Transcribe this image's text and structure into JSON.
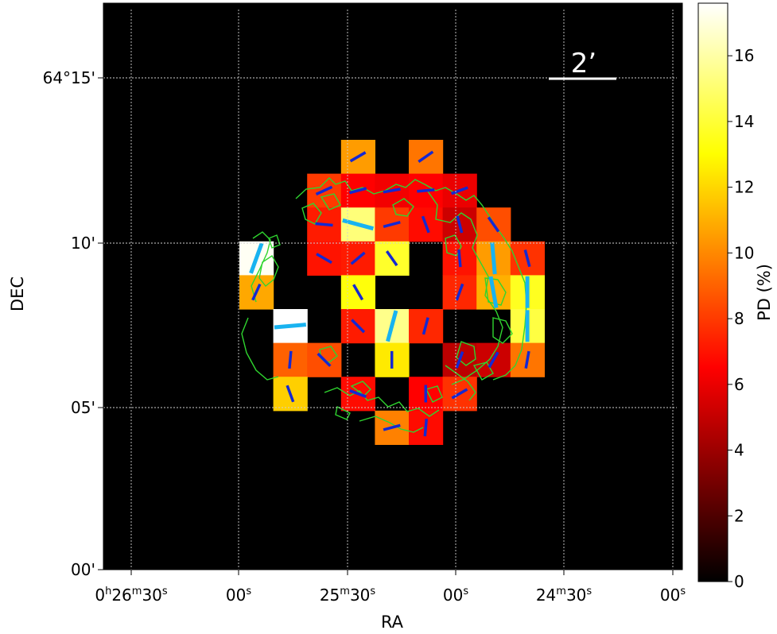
{
  "chart_data": {
    "type": "heatmap",
    "xlabel": "RA",
    "ylabel": "DEC",
    "colorbar_label": "PD (%)",
    "colorbar_range": [
      0,
      17.6
    ],
    "colorbar_ticks": [
      0,
      2,
      4,
      6,
      8,
      10,
      12,
      14,
      16
    ],
    "colormap": "hot",
    "colormap_stops": [
      {
        "v": 0.0,
        "color": "#000000"
      },
      {
        "v": 0.37,
        "color": "#ff0000"
      },
      {
        "v": 0.74,
        "color": "#ffff00"
      },
      {
        "v": 1.0,
        "color": "#ffffff"
      }
    ],
    "background_color": "#000000",
    "grid": true,
    "grid_color": "#cfcfcf",
    "x_ticks": [
      {
        "h": "0",
        "m": "26",
        "s": "30"
      },
      {
        "h": "",
        "m": "",
        "s": "00"
      },
      {
        "h": "",
        "m": "25",
        "s": "30"
      },
      {
        "h": "",
        "m": "",
        "s": "00"
      },
      {
        "h": "",
        "m": "24",
        "s": "30"
      },
      {
        "h": "",
        "m": "",
        "s": "00"
      }
    ],
    "y_ticks": [
      "00'",
      "05'",
      "10'",
      "64°15'"
    ],
    "scale_bar_label": "2’",
    "scale_bar_arcmin": 2,
    "pixel_size_arcmin": 1.05,
    "grid_cols": 9,
    "grid_rows": 9,
    "vector_colors": {
      "significant": "#19b3f0",
      "other": "#1428d2"
    },
    "contour_color": "#2fd52f",
    "pixels": [
      {
        "col": 3,
        "row": 0,
        "pd": 10.5,
        "pa": 60,
        "sig": false
      },
      {
        "col": 5,
        "row": 0,
        "pd": 9.5,
        "pa": 55,
        "sig": false
      },
      {
        "col": 2,
        "row": 1,
        "pd": 8.0,
        "pa": 65,
        "sig": false
      },
      {
        "col": 3,
        "row": 1,
        "pd": 6.5,
        "pa": 75,
        "sig": false
      },
      {
        "col": 4,
        "row": 1,
        "pd": 6.2,
        "pa": 80,
        "sig": false
      },
      {
        "col": 5,
        "row": 1,
        "pd": 6.5,
        "pa": 85,
        "sig": false
      },
      {
        "col": 6,
        "row": 1,
        "pd": 6.0,
        "pa": 70,
        "sig": false
      },
      {
        "col": 2,
        "row": 2,
        "pd": 7.2,
        "pa": 95,
        "sig": false
      },
      {
        "col": 3,
        "row": 2,
        "pd": 15.2,
        "pa": 105,
        "sig": true
      },
      {
        "col": 4,
        "row": 2,
        "pd": 8.0,
        "pa": 75,
        "sig": false
      },
      {
        "col": 5,
        "row": 2,
        "pd": 6.8,
        "pa": 160,
        "sig": false
      },
      {
        "col": 6,
        "row": 2,
        "pd": 5.2,
        "pa": 165,
        "sig": false
      },
      {
        "col": 7,
        "row": 2,
        "pd": 8.5,
        "pa": 145,
        "sig": false
      },
      {
        "col": 0,
        "row": 3,
        "pd": 17.4,
        "pa": 20,
        "sig": true
      },
      {
        "col": 2,
        "row": 3,
        "pd": 7.0,
        "pa": 120,
        "sig": false
      },
      {
        "col": 3,
        "row": 3,
        "pd": 7.2,
        "pa": 50,
        "sig": false
      },
      {
        "col": 4,
        "row": 3,
        "pd": 13.8,
        "pa": 145,
        "sig": false
      },
      {
        "col": 6,
        "row": 3,
        "pd": 7.0,
        "pa": 175,
        "sig": false
      },
      {
        "col": 7,
        "row": 3,
        "pd": 10.5,
        "pa": 175,
        "sig": true
      },
      {
        "col": 8,
        "row": 3,
        "pd": 7.8,
        "pa": 165,
        "sig": false
      },
      {
        "col": 0,
        "row": 4,
        "pd": 10.8,
        "pa": 25,
        "sig": false
      },
      {
        "col": 3,
        "row": 4,
        "pd": 13.2,
        "pa": 150,
        "sig": false
      },
      {
        "col": 6,
        "row": 4,
        "pd": 7.5,
        "pa": 20,
        "sig": false
      },
      {
        "col": 7,
        "row": 4,
        "pd": 11.0,
        "pa": 170,
        "sig": true
      },
      {
        "col": 8,
        "row": 4,
        "pd": 13.6,
        "pa": 0,
        "sig": true
      },
      {
        "col": 1,
        "row": 5,
        "pd": 17.6,
        "pa": 85,
        "sig": true
      },
      {
        "col": 3,
        "row": 5,
        "pd": 7.2,
        "pa": 135,
        "sig": false
      },
      {
        "col": 4,
        "row": 5,
        "pd": 15.5,
        "pa": 15,
        "sig": true
      },
      {
        "col": 5,
        "row": 5,
        "pd": 7.5,
        "pa": 15,
        "sig": false
      },
      {
        "col": 8,
        "row": 5,
        "pd": 14.2,
        "pa": 0,
        "sig": true
      },
      {
        "col": 1,
        "row": 6,
        "pd": 9.0,
        "pa": 5,
        "sig": false
      },
      {
        "col": 2,
        "row": 6,
        "pd": 8.5,
        "pa": 135,
        "sig": false
      },
      {
        "col": 4,
        "row": 6,
        "pd": 12.5,
        "pa": 0,
        "sig": false
      },
      {
        "col": 6,
        "row": 6,
        "pd": 4.8,
        "pa": 20,
        "sig": false
      },
      {
        "col": 7,
        "row": 6,
        "pd": 5.2,
        "pa": 30,
        "sig": false
      },
      {
        "col": 8,
        "row": 6,
        "pd": 9.5,
        "pa": 10,
        "sig": false
      },
      {
        "col": 1,
        "row": 7,
        "pd": 11.8,
        "pa": 160,
        "sig": false
      },
      {
        "col": 3,
        "row": 7,
        "pd": 6.8,
        "pa": 110,
        "sig": false
      },
      {
        "col": 5,
        "row": 7,
        "pd": 6.5,
        "pa": 0,
        "sig": false
      },
      {
        "col": 6,
        "row": 7,
        "pd": 7.8,
        "pa": 60,
        "sig": false
      },
      {
        "col": 4,
        "row": 8,
        "pd": 9.8,
        "pa": 75,
        "sig": false
      },
      {
        "col": 5,
        "row": 8,
        "pd": 6.8,
        "pa": 5,
        "sig": false
      }
    ]
  }
}
